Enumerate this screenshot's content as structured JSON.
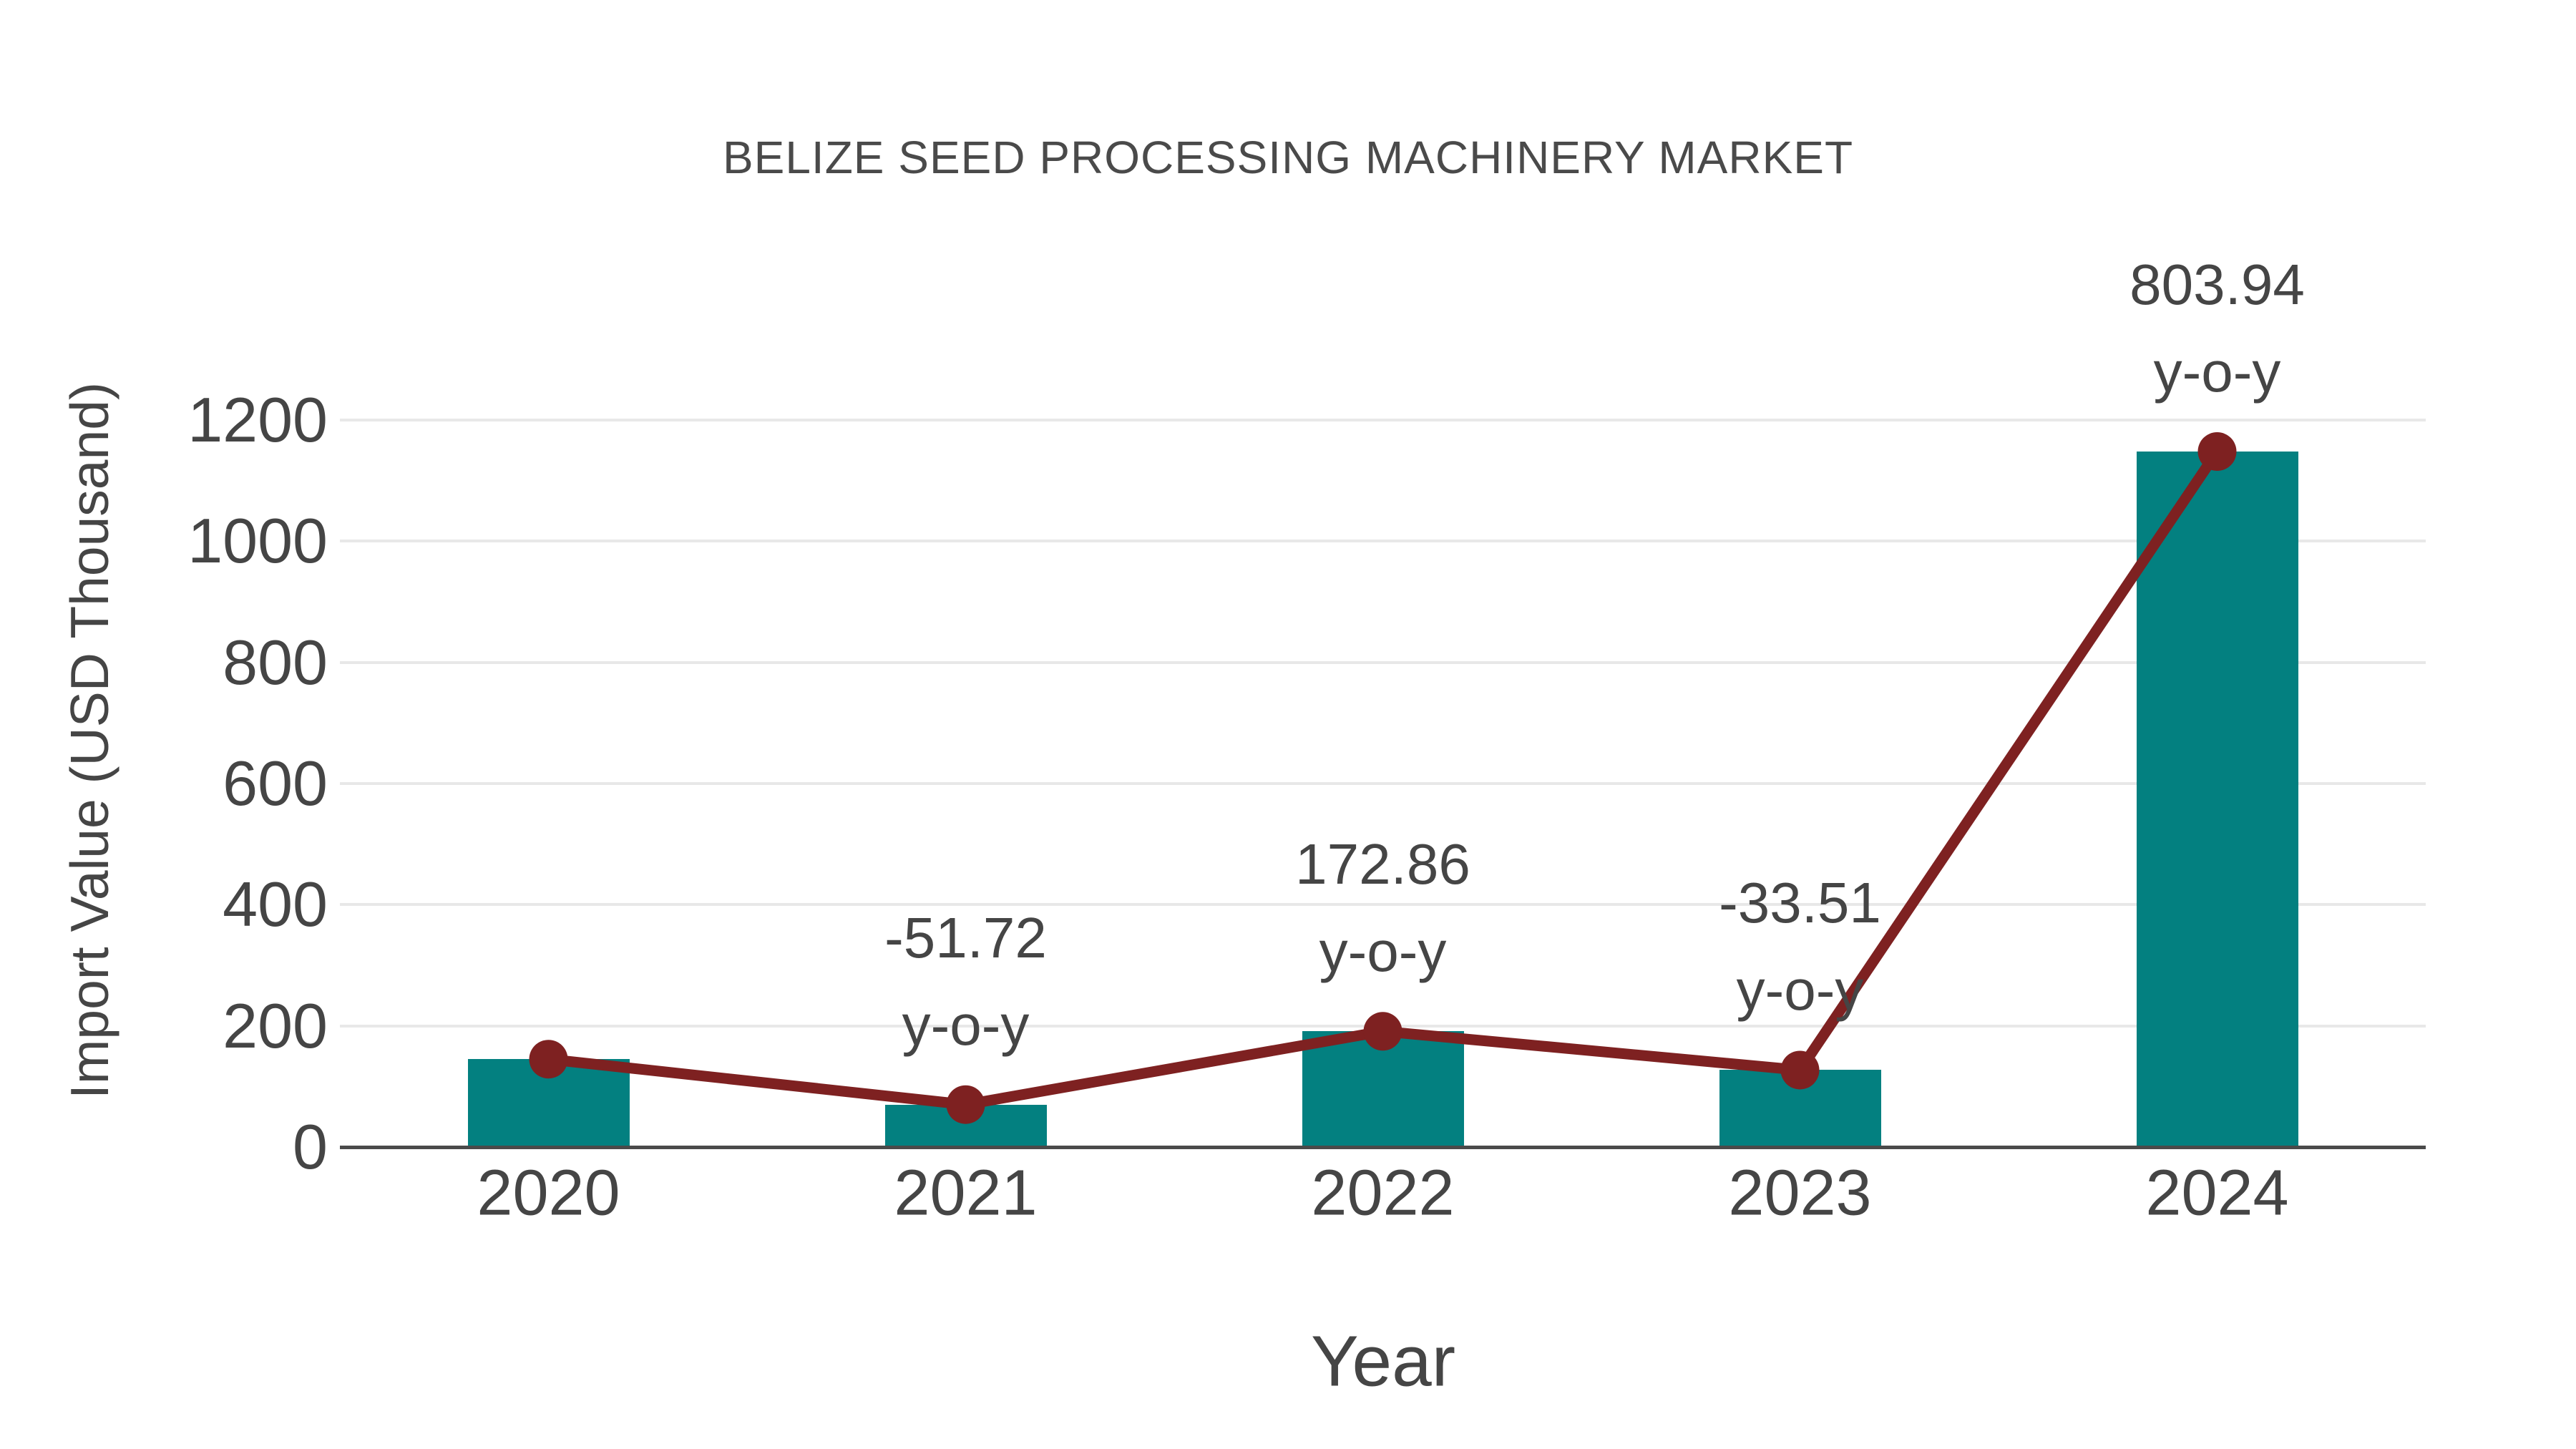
{
  "chart_data": {
    "type": "bar",
    "title": "BELIZE SEED PROCESSING MACHINERY MARKET",
    "xlabel": "Year",
    "ylabel": "Import Value (USD Thousand)",
    "categories": [
      "2020",
      "2021",
      "2022",
      "2023",
      "2024"
    ],
    "series": [
      {
        "name": "import-value-bars",
        "type": "bar",
        "values": [
          145,
          70,
          191,
          127,
          1148
        ]
      },
      {
        "name": "import-value-line",
        "type": "line",
        "values": [
          145,
          70,
          191,
          127,
          1148
        ]
      }
    ],
    "annotations": [
      {
        "category": "2021",
        "value": "-51.72",
        "label": "y-o-y"
      },
      {
        "category": "2022",
        "value": "172.86",
        "label": "y-o-y"
      },
      {
        "category": "2023",
        "value": "-33.51",
        "label": "y-o-y"
      },
      {
        "category": "2024",
        "value": "803.94",
        "label": "y-o-y"
      }
    ],
    "yticks": [
      0,
      200,
      400,
      600,
      800,
      1000,
      1200
    ],
    "ylim": [
      0,
      1490
    ],
    "grid": "horizontal-only",
    "legend": "none",
    "colors": {
      "bar": "#038080",
      "line": "#7e2121",
      "marker": "#7e2121",
      "text": "#454545",
      "grid": "#e8e8e8",
      "axis": "#4a4a4a",
      "background": "#ffffff"
    }
  }
}
